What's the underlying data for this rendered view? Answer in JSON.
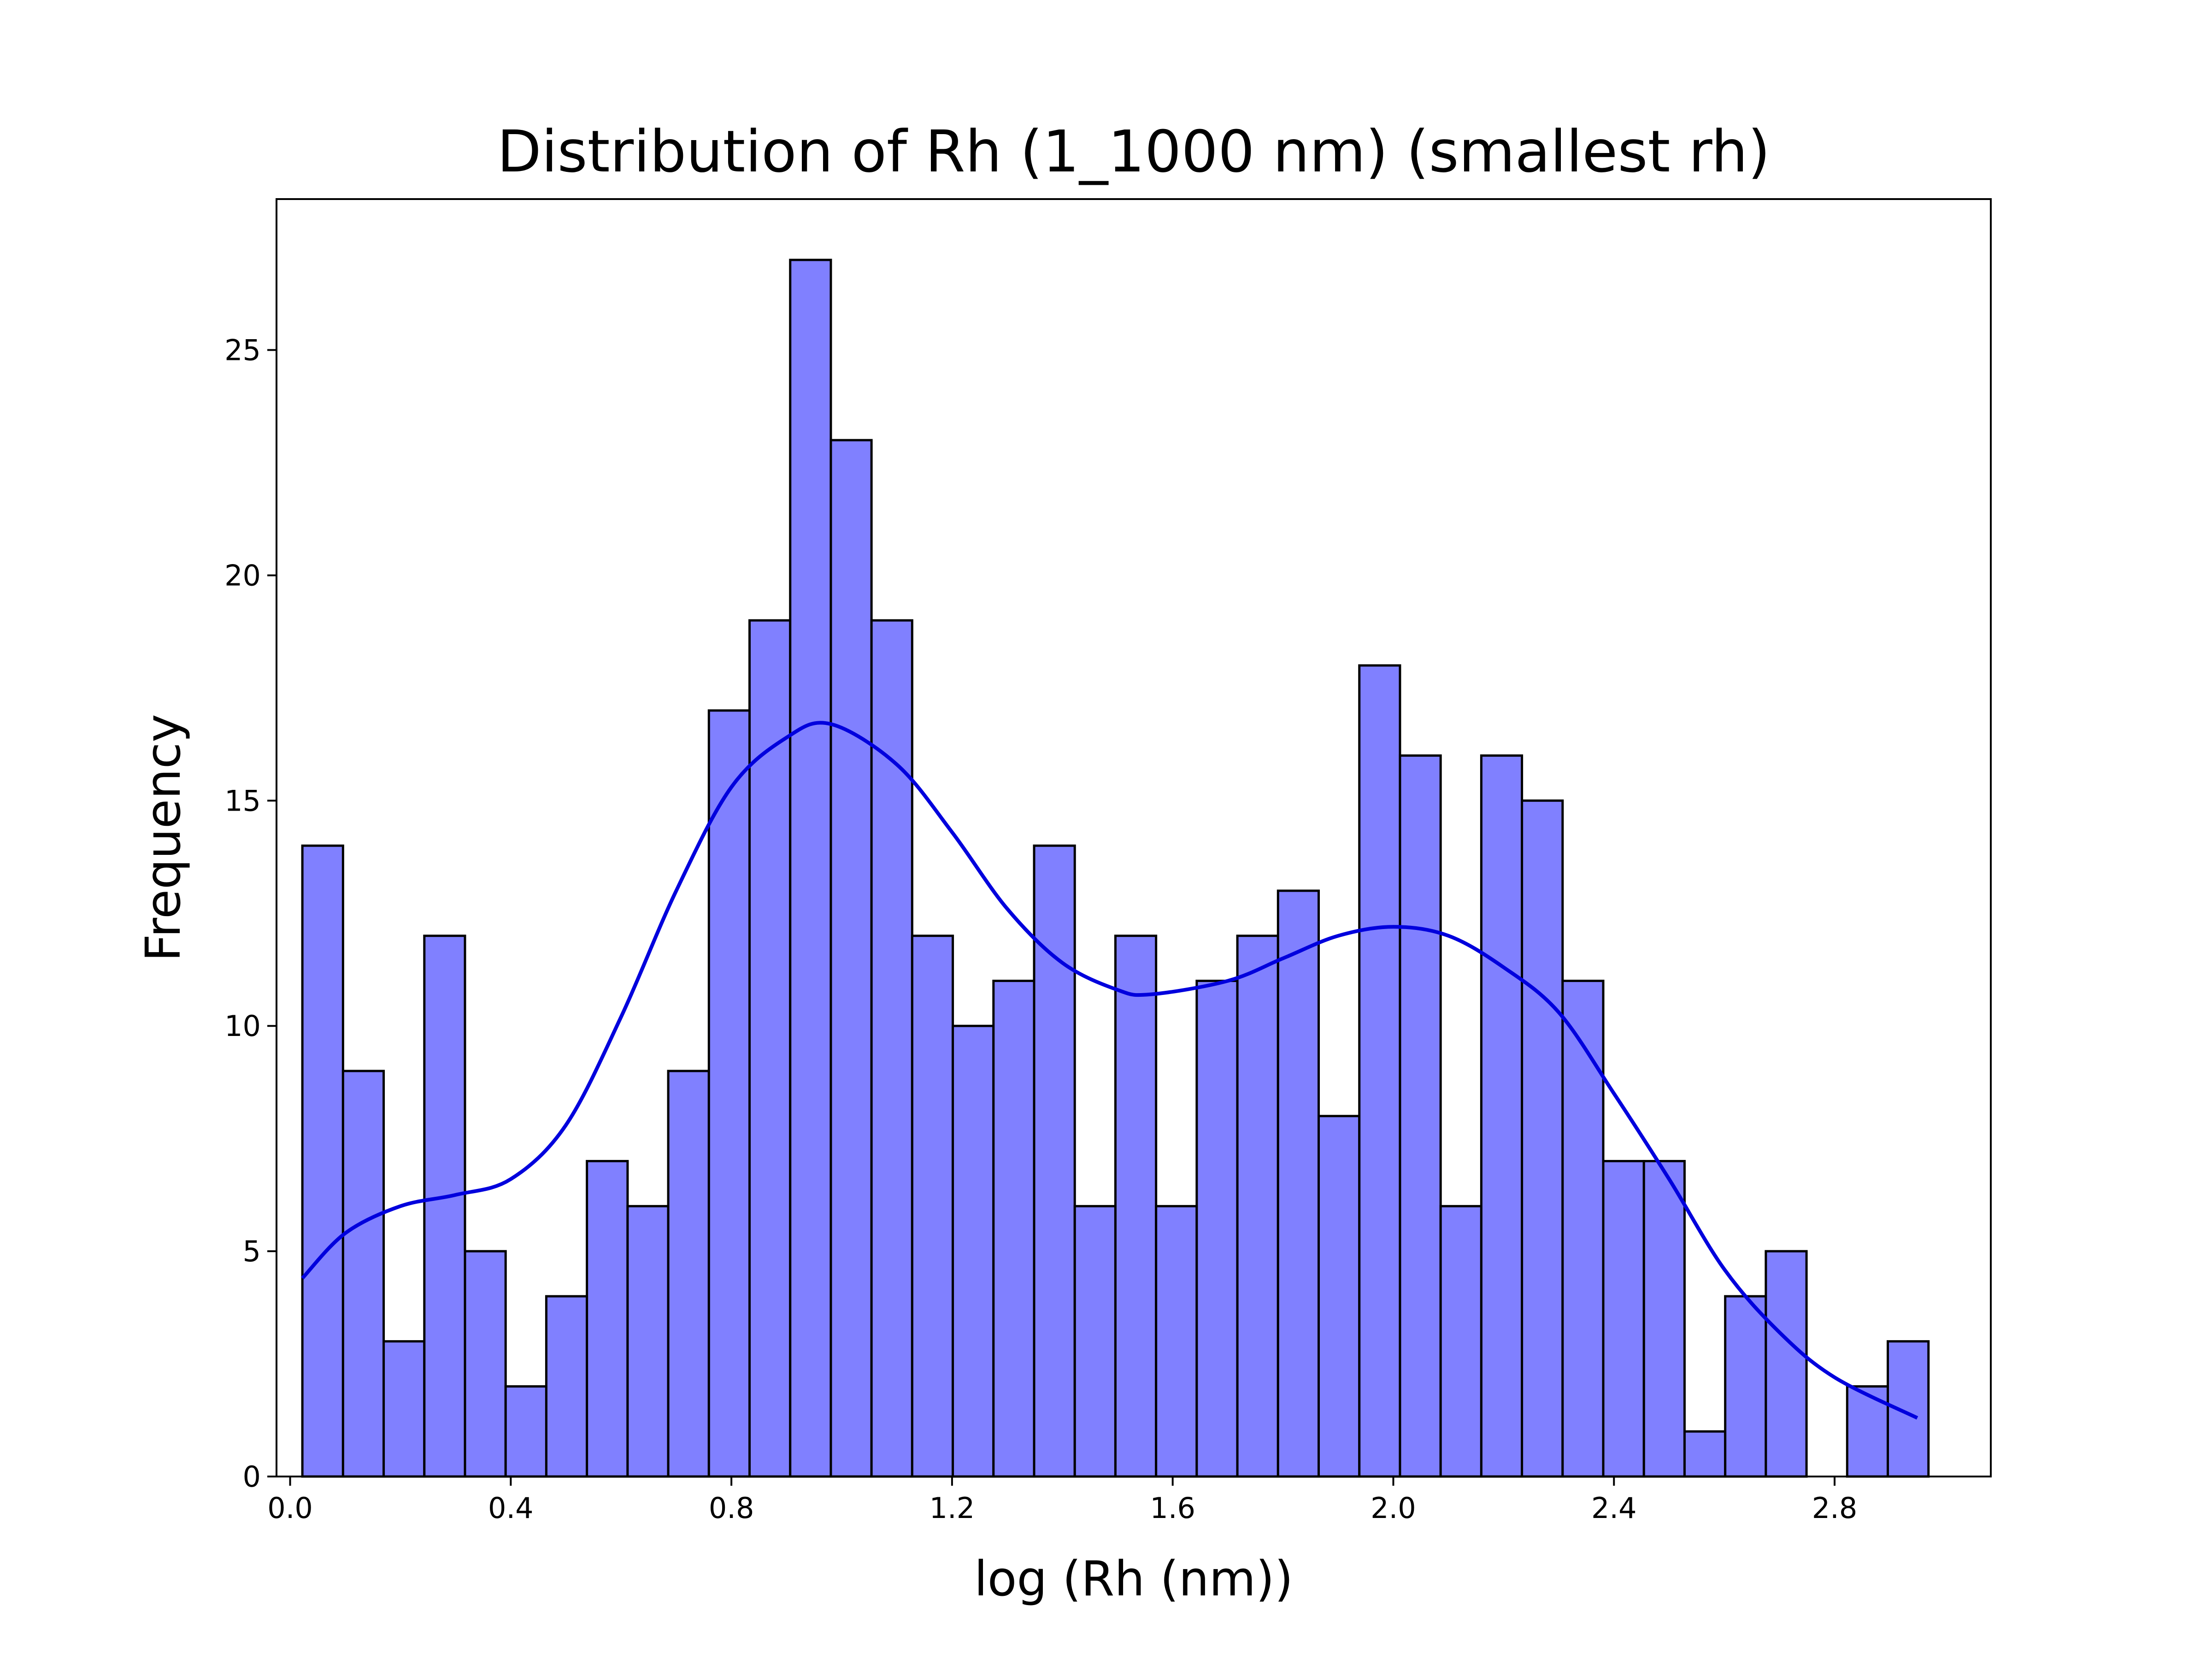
{
  "chart_data": {
    "type": "bar",
    "title": "Distribution of Rh (1_1000 nm) (smallest rh)",
    "xlabel": "log (Rh (nm))",
    "ylabel": "Frequency",
    "xlim": [
      -0.0247,
      3.0832
    ],
    "ylim": [
      0,
      28.35
    ],
    "x_ticks": [
      0.0,
      0.4,
      0.8,
      1.2,
      1.6,
      2.0,
      2.4,
      2.8
    ],
    "x_tick_labels": [
      "0.0",
      "0.4",
      "0.8",
      "1.2",
      "1.6",
      "2.0",
      "2.4",
      "2.8"
    ],
    "y_ticks": [
      0,
      5,
      10,
      15,
      20,
      25
    ],
    "y_tick_labels": [
      "0",
      "5",
      "10",
      "15",
      "20",
      "25"
    ],
    "bin_start": 0.0222,
    "bin_width": 0.0737,
    "values": [
      14,
      9,
      3,
      12,
      5,
      2,
      4,
      7,
      6,
      9,
      17,
      19,
      27,
      23,
      19,
      12,
      10,
      11,
      14,
      6,
      12,
      6,
      11,
      12,
      13,
      8,
      18,
      16,
      6,
      16,
      15,
      11,
      7,
      7,
      1,
      4,
      5,
      0,
      2,
      3
    ],
    "kde": {
      "x": [
        0.0222,
        0.1,
        0.2,
        0.3,
        0.4,
        0.5,
        0.6,
        0.7,
        0.8,
        0.9,
        0.98,
        1.1,
        1.2,
        1.3,
        1.4,
        1.5,
        1.56,
        1.7,
        1.8,
        1.9,
        2.0,
        2.1,
        2.2,
        2.3,
        2.4,
        2.5,
        2.6,
        2.7,
        2.8,
        2.95
      ],
      "y": [
        4.4,
        5.4,
        6.0,
        6.25,
        6.6,
        7.8,
        10.2,
        13.0,
        15.3,
        16.4,
        16.7,
        15.8,
        14.3,
        12.6,
        11.4,
        10.8,
        10.7,
        11.0,
        11.5,
        12.0,
        12.2,
        12.0,
        11.3,
        10.3,
        8.5,
        6.6,
        4.6,
        3.2,
        2.2,
        1.3
      ]
    },
    "bar_color": "#8080ff",
    "bar_edge_color": "#000000",
    "kde_color": "#0000dd",
    "grid": false,
    "legend": "none"
  }
}
